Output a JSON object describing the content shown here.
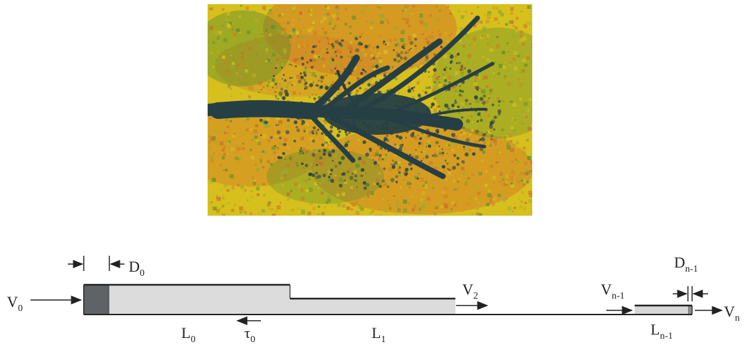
{
  "figure": {
    "photo": {
      "subject": "fractal-fluid-channel-image",
      "colors": {
        "background_yellow": "#d9c21f",
        "background_orange": "#d27b26",
        "background_green": "#5a8f2a",
        "channel_dark": "#263f45"
      }
    },
    "diagram": {
      "labels": {
        "v0": {
          "main": "V",
          "sub": "0"
        },
        "d0": {
          "main": "D",
          "sub": "0"
        },
        "l0": {
          "main": "L",
          "sub": "0"
        },
        "tau0": {
          "main": "τ",
          "sub": "0"
        },
        "l1": {
          "main": "L",
          "sub": "1"
        },
        "v2": {
          "main": "V",
          "sub": "2"
        },
        "vn1": {
          "main": "V",
          "sub": "n-1"
        },
        "dn1": {
          "main": "D",
          "sub": "n-1"
        },
        "vn": {
          "main": "V",
          "sub": "n"
        },
        "ln1": {
          "main": "L",
          "sub": "n-1"
        }
      },
      "colors": {
        "tube_fill": "#dcdcdc",
        "plug_fill": "#5f6366",
        "line": "#222222"
      }
    }
  }
}
